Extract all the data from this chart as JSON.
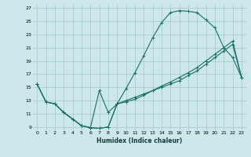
{
  "xlabel": "Humidex (Indice chaleur)",
  "bg_color": "#cce8ea",
  "grid_color": "#aacccc",
  "line_color": "#1a6e6a",
  "xlim": [
    -0.5,
    23.5
  ],
  "ylim": [
    8.5,
    27.5
  ],
  "xticks": [
    0,
    1,
    2,
    3,
    4,
    5,
    6,
    7,
    8,
    9,
    10,
    11,
    12,
    13,
    14,
    15,
    16,
    17,
    18,
    19,
    20,
    21,
    22,
    23
  ],
  "yticks": [
    9,
    11,
    13,
    15,
    17,
    19,
    21,
    23,
    25,
    27
  ],
  "series1_x": [
    0,
    1,
    2,
    3,
    4,
    5,
    6,
    7,
    8,
    9,
    10,
    11,
    12,
    13,
    14,
    15,
    16,
    17,
    18,
    19,
    20,
    21,
    22,
    23
  ],
  "series1_y": [
    15.5,
    12.8,
    12.5,
    11.2,
    10.2,
    9.2,
    8.9,
    8.8,
    9.0,
    12.5,
    14.8,
    17.2,
    19.8,
    22.5,
    24.8,
    26.3,
    26.6,
    26.5,
    26.3,
    25.2,
    24.0,
    21.0,
    19.5,
    16.5
  ],
  "series2_x": [
    0,
    1,
    2,
    3,
    4,
    5,
    6,
    7,
    8,
    9,
    10,
    11,
    12,
    13,
    14,
    15,
    16,
    17,
    18,
    19,
    20,
    21,
    22,
    23
  ],
  "series2_y": [
    15.5,
    12.8,
    12.5,
    11.2,
    10.2,
    9.2,
    8.9,
    14.5,
    11.2,
    12.5,
    12.8,
    13.2,
    13.8,
    14.5,
    15.2,
    15.8,
    16.5,
    17.2,
    18.0,
    19.0,
    20.0,
    21.0,
    22.0,
    16.5
  ],
  "series3_x": [
    0,
    1,
    2,
    3,
    4,
    5,
    6,
    7,
    8,
    9,
    10,
    11,
    12,
    13,
    14,
    15,
    16,
    17,
    18,
    19,
    20,
    21,
    22,
    23
  ],
  "series3_y": [
    15.5,
    12.8,
    12.5,
    11.2,
    10.2,
    9.2,
    8.9,
    8.8,
    9.0,
    12.5,
    13.0,
    13.5,
    14.0,
    14.5,
    15.0,
    15.5,
    16.0,
    16.8,
    17.5,
    18.5,
    19.5,
    20.5,
    21.5,
    16.5
  ]
}
